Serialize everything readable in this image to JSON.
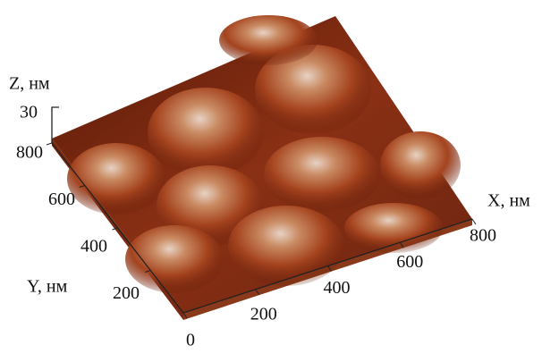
{
  "chart_data": {
    "type": "surface3d",
    "x_label": "X, нм",
    "y_label": "Y, нм",
    "z_label": "Z, нм",
    "xlim": [
      0,
      800
    ],
    "xticks": [
      0,
      200,
      400,
      600,
      800
    ],
    "ylim": [
      0,
      800
    ],
    "yticks": [
      200,
      400,
      600,
      800
    ],
    "zticks": [
      30
    ]
  }
}
